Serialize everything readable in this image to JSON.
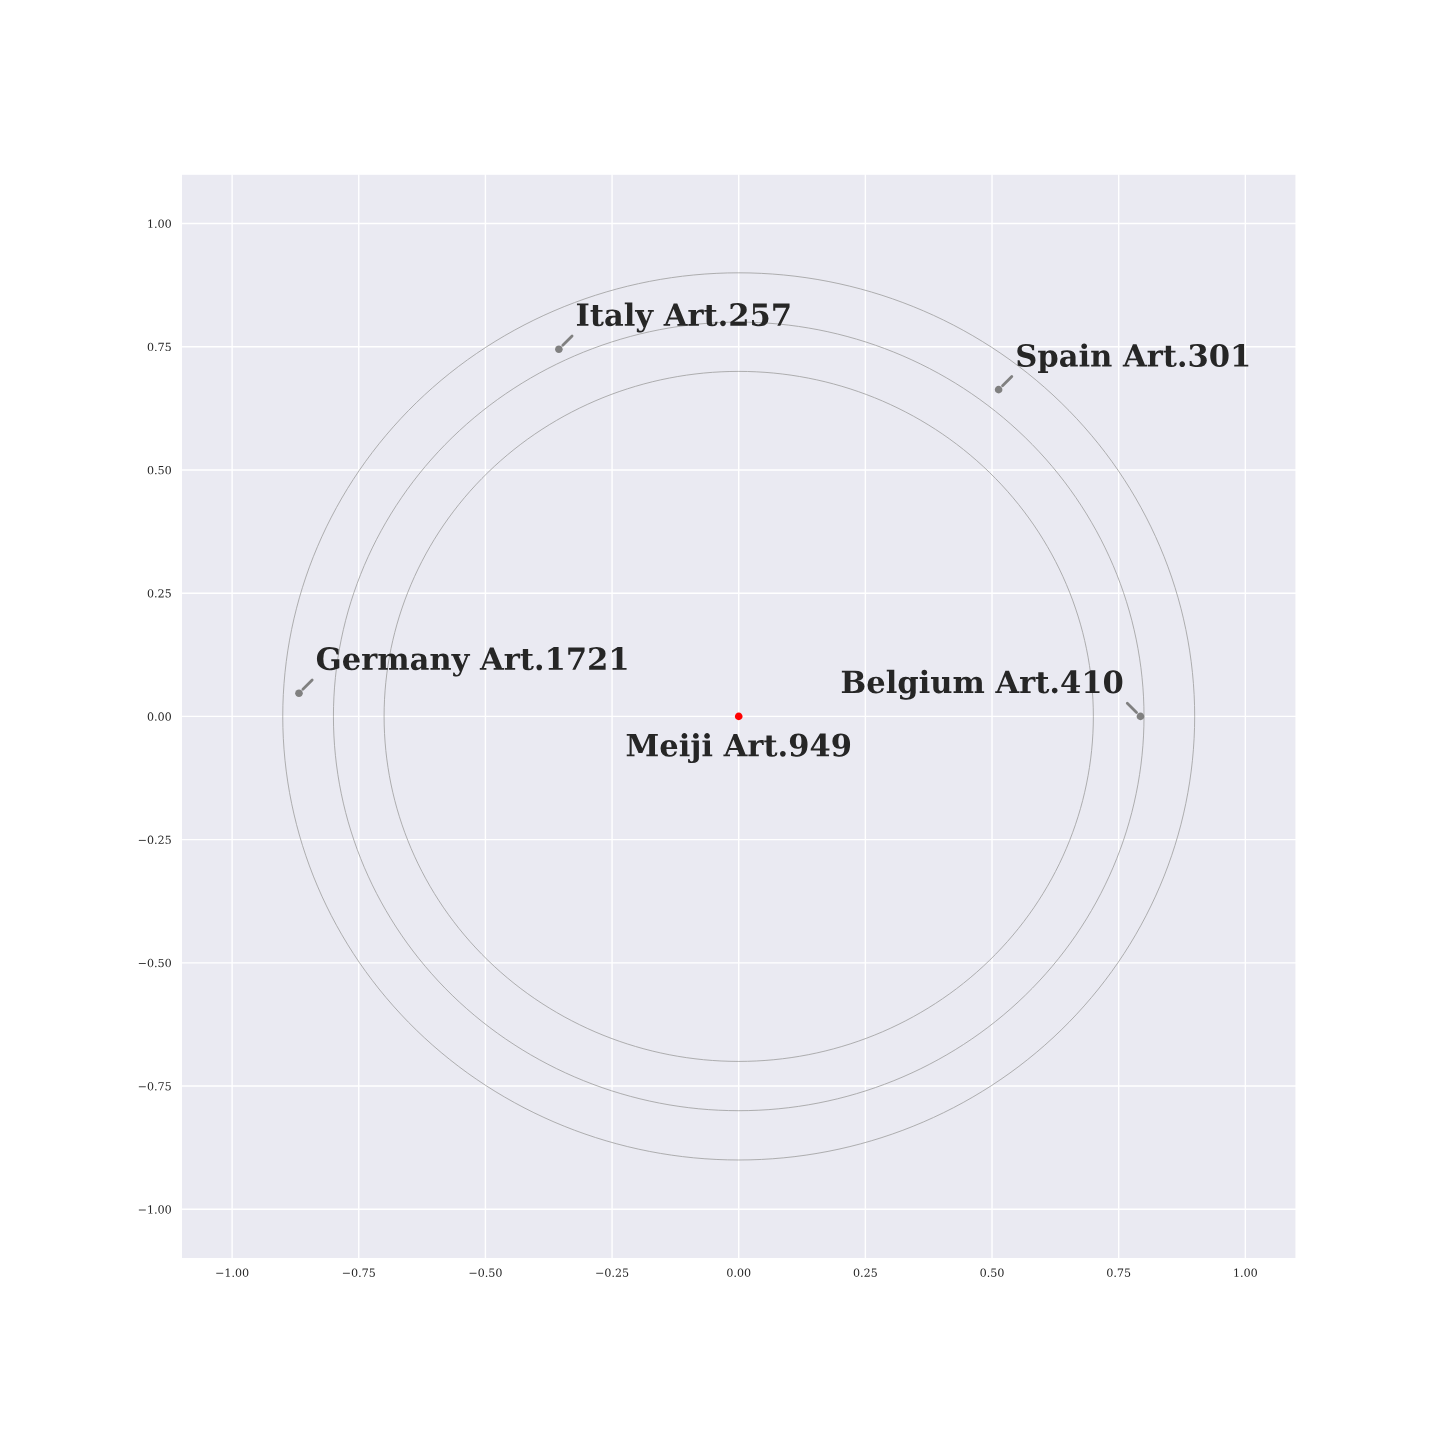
{
  "chart_data": {
    "type": "scatter",
    "xlim": [
      -1.1,
      1.1
    ],
    "ylim": [
      -1.1,
      1.1
    ],
    "xticks": [
      {
        "value": -1,
        "label": "−1.00"
      },
      {
        "value": -0.75,
        "label": "−0.75"
      },
      {
        "value": -0.5,
        "label": "−0.50"
      },
      {
        "value": -0.25,
        "label": "−0.25"
      },
      {
        "value": 0,
        "label": "0.00"
      },
      {
        "value": 0.25,
        "label": "0.25"
      },
      {
        "value": 0.5,
        "label": "0.50"
      },
      {
        "value": 0.75,
        "label": "0.75"
      },
      {
        "value": 1,
        "label": "1.00"
      }
    ],
    "yticks": [
      {
        "value": -1,
        "label": "−1.00"
      },
      {
        "value": -0.75,
        "label": "−0.75"
      },
      {
        "value": -0.5,
        "label": "−0.50"
      },
      {
        "value": -0.25,
        "label": "−0.25"
      },
      {
        "value": 0,
        "label": "0.00"
      },
      {
        "value": 0.25,
        "label": "0.25"
      },
      {
        "value": 0.5,
        "label": "0.50"
      },
      {
        "value": 0.75,
        "label": "0.75"
      },
      {
        "value": 1,
        "label": "1.00"
      }
    ],
    "grid": true,
    "series": [
      {
        "marker": "circle",
        "x": [
          -0.355,
          0.513,
          -0.868,
          0.793,
          0
        ],
        "values": [
          0.745,
          0.663,
          0.047,
          0,
          0
        ],
        "colors": [
          "#808080",
          "#808080",
          "#808080",
          "#808080",
          "#ff0000"
        ]
      }
    ],
    "annotations": [
      {
        "text": "Italy Art.257",
        "x": -0.355,
        "y": 0.745
      },
      {
        "text": "Spain Art.301",
        "x": 0.513,
        "y": 0.663
      },
      {
        "text": "Germany Art.1721",
        "x": -0.868,
        "y": 0.047
      },
      {
        "text": "Belgium Art.410",
        "x": 0.793,
        "y": 0
      },
      {
        "text": "Meiji Art.949",
        "x": 0,
        "y": 0
      }
    ]
  }
}
